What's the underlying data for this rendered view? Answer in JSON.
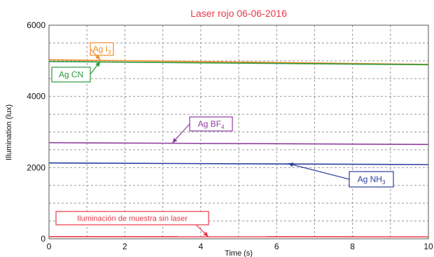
{
  "chart_data": {
    "type": "line",
    "title": "Laser rojo 06-06-2016",
    "xlabel": "Time (s)",
    "ylabel": "Illumination (lux)",
    "xlim": [
      0,
      10
    ],
    "ylim": [
      0,
      6000
    ],
    "xticks": [
      "0",
      "2",
      "4",
      "6",
      "8",
      "10"
    ],
    "yticks": [
      "0",
      "2000",
      "4000",
      "6000"
    ],
    "grid": true,
    "series": [
      {
        "name": "Ag I3",
        "color": "#f08a2c",
        "x": [
          0,
          10
        ],
        "y": [
          5030,
          4900
        ]
      },
      {
        "name": "Ag CN",
        "color": "#2e9a3c",
        "x": [
          0,
          10
        ],
        "y": [
          4980,
          4890
        ]
      },
      {
        "name": "Ag BF4",
        "color": "#8e3e9e",
        "x": [
          0,
          10
        ],
        "y": [
          2700,
          2650
        ]
      },
      {
        "name": "Ag NH3",
        "color": "#2b3f9e",
        "x": [
          0,
          10
        ],
        "y": [
          2130,
          2085
        ]
      },
      {
        "name": "Iluminación de muestra sin laser",
        "color": "#e8384a",
        "x": [
          0,
          10
        ],
        "y": [
          60,
          55
        ]
      }
    ],
    "annotations": [
      {
        "base": "Ag I",
        "sub": "3",
        "color": "#f08a2c",
        "arrow_to": [
          1.35,
          5030
        ]
      },
      {
        "base": "Ag CN",
        "sub": "",
        "color": "#2e9a3c",
        "arrow_to": [
          1.35,
          4980
        ]
      },
      {
        "base": "Ag BF",
        "sub": "4",
        "color": "#8e3e9e",
        "arrow_to": [
          3.25,
          2690
        ]
      },
      {
        "base": "Ag NH",
        "sub": "3",
        "color": "#2b3f9e",
        "arrow_to": [
          6.3,
          2115
        ]
      },
      {
        "base": "Iluminación de muestra sin laser",
        "sub": "",
        "color": "#e8384a",
        "arrow_to": [
          4.2,
          60
        ]
      }
    ]
  }
}
